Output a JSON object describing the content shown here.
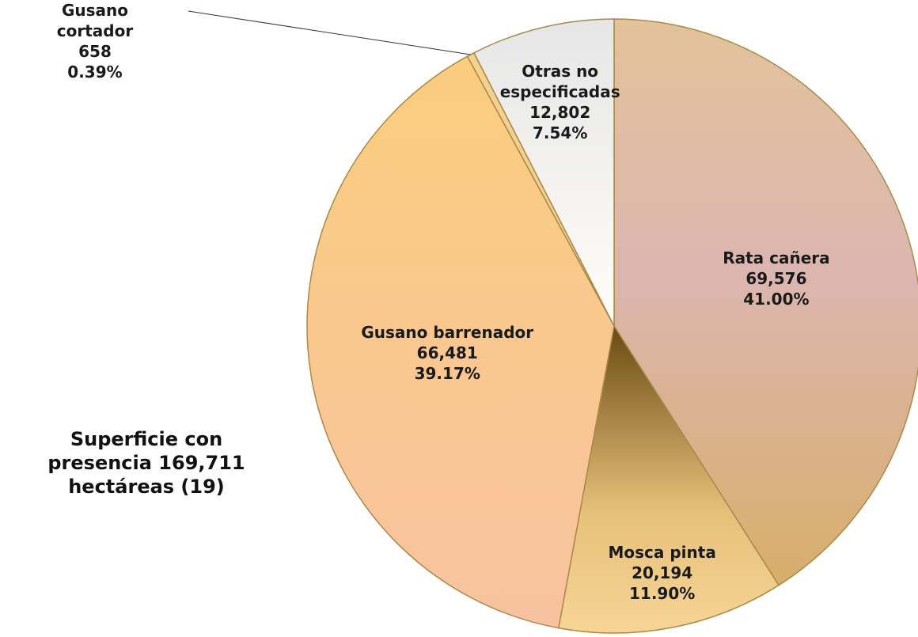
{
  "chart_data": {
    "type": "pie",
    "categories": [
      "Rata cañera",
      "Mosca pinta",
      "Gusano barrenador",
      "Gusano cortador",
      "Otras no especificadas"
    ],
    "values": [
      69576,
      20194,
      66481,
      658,
      12802
    ],
    "value_labels": [
      "69,576",
      "20,194",
      "66,481",
      "658",
      "12,802"
    ],
    "percentages": [
      41.0,
      11.9,
      39.17,
      0.39,
      7.54
    ],
    "percentage_labels": [
      "41.00%",
      "11.90%",
      "39.17%",
      "0.39%",
      "7.54%"
    ],
    "colors": [
      "#dcb98c",
      "#d9b274",
      "#f9c796",
      "#f6d08e",
      "#f2efec"
    ],
    "annotation": "Superficie con presencia 169,711 hectáreas (19)"
  }
}
